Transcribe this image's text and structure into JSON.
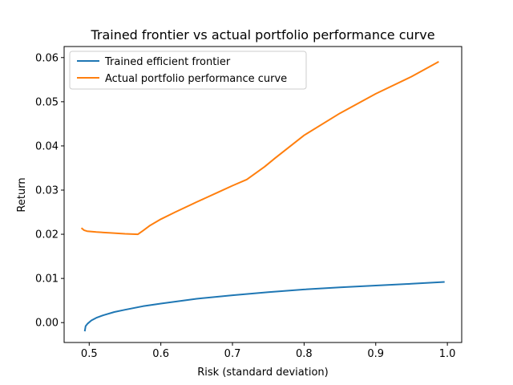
{
  "chart_data": {
    "type": "line",
    "title": "Trained frontier vs actual portfolio performance curve",
    "xlabel": "Risk (standard deviation)",
    "ylabel": "Return",
    "xlim": [
      0.465,
      1.02
    ],
    "ylim": [
      -0.0045,
      0.0625
    ],
    "xticks": [
      0.5,
      0.6,
      0.7,
      0.8,
      0.9,
      1.0
    ],
    "xtick_labels": [
      "0.5",
      "0.6",
      "0.7",
      "0.8",
      "0.9",
      "1.0"
    ],
    "yticks": [
      0.0,
      0.01,
      0.02,
      0.03,
      0.04,
      0.05,
      0.06
    ],
    "ytick_labels": [
      "0.00",
      "0.01",
      "0.02",
      "0.03",
      "0.04",
      "0.05",
      "0.06"
    ],
    "grid": false,
    "legend_position": "upper-left",
    "series": [
      {
        "name": "Trained efficient frontier",
        "color": "#1f77b4",
        "x": [
          0.494,
          0.495,
          0.498,
          0.503,
          0.51,
          0.52,
          0.535,
          0.55,
          0.575,
          0.6,
          0.65,
          0.7,
          0.75,
          0.8,
          0.85,
          0.9,
          0.95,
          0.995
        ],
        "y": [
          -0.0018,
          -0.0008,
          -0.0002,
          0.0005,
          0.0011,
          0.0017,
          0.0024,
          0.0029,
          0.0037,
          0.0043,
          0.0054,
          0.0062,
          0.0069,
          0.0075,
          0.008,
          0.0084,
          0.0088,
          0.0092
        ]
      },
      {
        "name": "Actual portfolio performance curve",
        "color": "#ff7f0e",
        "x": [
          0.49,
          0.493,
          0.497,
          0.51,
          0.53,
          0.55,
          0.568,
          0.575,
          0.585,
          0.6,
          0.62,
          0.65,
          0.68,
          0.7,
          0.72,
          0.745,
          0.76,
          0.8,
          0.85,
          0.9,
          0.95,
          0.987
        ],
        "y": [
          0.0213,
          0.0209,
          0.0207,
          0.0205,
          0.0203,
          0.0201,
          0.02,
          0.0208,
          0.022,
          0.0234,
          0.025,
          0.0273,
          0.0295,
          0.031,
          0.0324,
          0.0353,
          0.0373,
          0.0424,
          0.0474,
          0.0518,
          0.0557,
          0.059
        ]
      }
    ]
  }
}
